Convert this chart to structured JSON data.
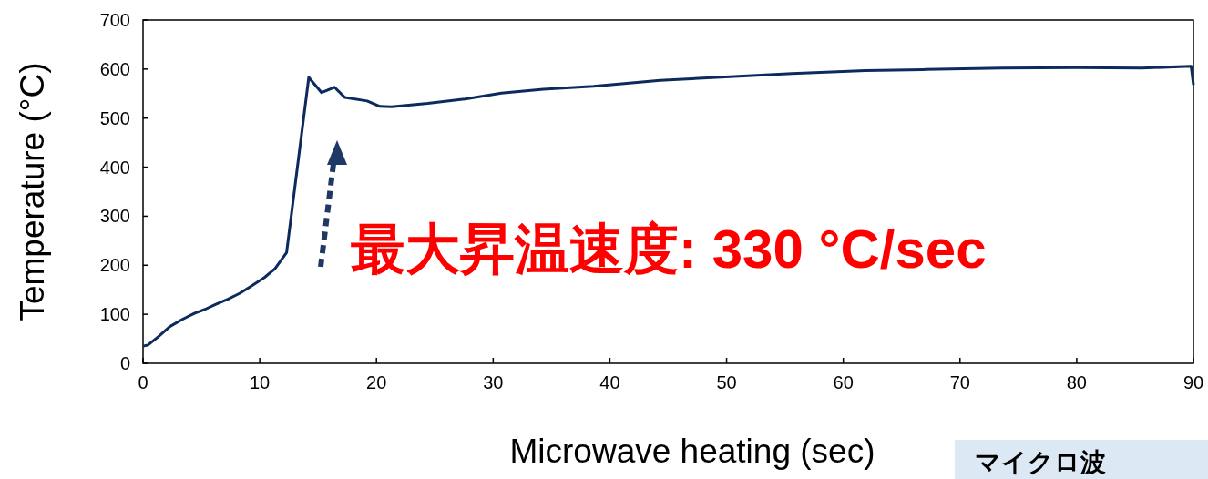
{
  "chart_data": {
    "type": "line",
    "xlabel": "Microwave heating (sec)",
    "ylabel": "Temperature (°C)",
    "annotations": [
      "最大昇温速度: 330 °C/sec",
      "マイクロ波"
    ],
    "xlim": [
      0,
      90
    ],
    "ylim": [
      0,
      700
    ],
    "xticks": [
      0,
      10,
      20,
      30,
      40,
      50,
      60,
      70,
      80,
      90
    ],
    "yticks": [
      0,
      100,
      200,
      300,
      400,
      500,
      600,
      700
    ],
    "series": [
      {
        "color": "#0d2a5c",
        "x": [
          0,
          0.4,
          1.3,
          2.3,
          3.4,
          4.4,
          5.3,
          6.2,
          7.3,
          8.3,
          9.3,
          10.4,
          11.3,
          12.3,
          14.2,
          15.3,
          16.4,
          17.3,
          19.2,
          20.3,
          21.3,
          24.4,
          27.6,
          30.7,
          34.3,
          38.6,
          44.3,
          49.9,
          55.6,
          61.9,
          66.8,
          73.6,
          80,
          85.6,
          89.8,
          90
        ],
        "values": [
          35,
          37,
          54,
          75,
          90,
          102,
          110,
          120,
          131,
          143,
          158,
          175,
          193,
          226,
          583,
          552,
          563,
          542,
          535,
          524,
          523,
          530,
          539,
          551,
          559,
          565,
          577,
          584,
          591,
          597,
          599,
          602,
          603,
          602,
          606,
          568
        ]
      }
    ]
  }
}
